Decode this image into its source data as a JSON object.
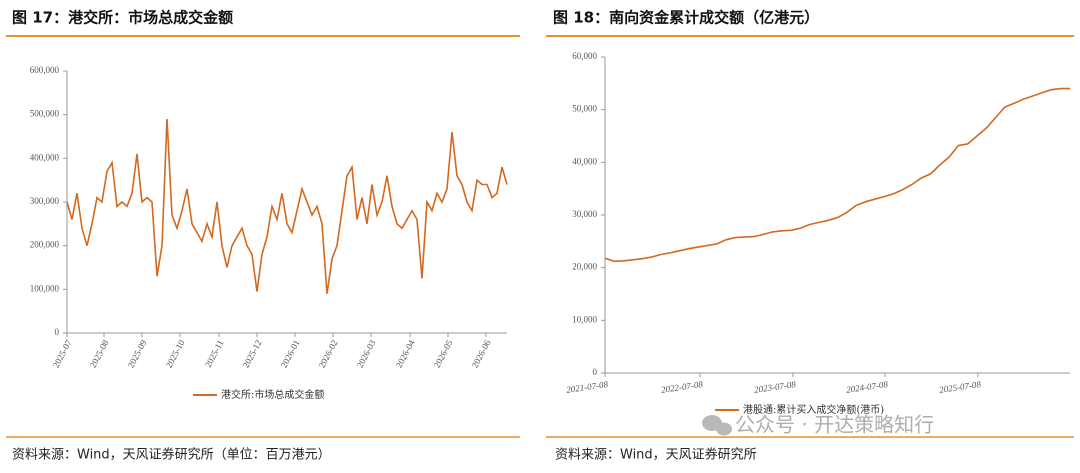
{
  "chart_data": [
    {
      "type": "line",
      "title": "图 17：港交所：市场总成交金额",
      "series": [
        {
          "name": "港交所:市场总成交金额",
          "color": "#d2691e",
          "values": [
            300000,
            260000,
            320000,
            240000,
            200000,
            250000,
            310000,
            300000,
            370000,
            390000,
            290000,
            300000,
            290000,
            320000,
            410000,
            300000,
            310000,
            300000,
            130000,
            200000,
            490000,
            270000,
            240000,
            280000,
            330000,
            250000,
            230000,
            210000,
            250000,
            220000,
            300000,
            200000,
            150000,
            200000,
            220000,
            240000,
            200000,
            180000,
            95000,
            180000,
            220000,
            290000,
            260000,
            320000,
            250000,
            230000,
            280000,
            330000,
            300000,
            270000,
            290000,
            250000,
            90000,
            170000,
            200000,
            280000,
            360000,
            380000,
            260000,
            310000,
            250000,
            340000,
            270000,
            300000,
            360000,
            290000,
            250000,
            240000,
            260000,
            280000,
            260000,
            125000,
            300000,
            280000,
            320000,
            300000,
            330000,
            460000,
            360000,
            340000,
            300000,
            280000,
            350000,
            340000,
            340000,
            310000,
            320000,
            380000,
            340000
          ]
        }
      ],
      "xlim": [
        0,
        88
      ],
      "xticks": [
        {
          "value": 0,
          "label": "2025-07"
        },
        {
          "value": 7.4,
          "label": "2025-08"
        },
        {
          "value": 15,
          "label": "2025-09"
        },
        {
          "value": 22.6,
          "label": "2025-10"
        },
        {
          "value": 30.4,
          "label": "2025-11"
        },
        {
          "value": 38,
          "label": "2025-12"
        },
        {
          "value": 45.6,
          "label": "2026-01"
        },
        {
          "value": 53.2,
          "label": "2026-02"
        },
        {
          "value": 60.8,
          "label": "2026-03"
        },
        {
          "value": 68.6,
          "label": "2026-04"
        },
        {
          "value": 76.2,
          "label": "2026-05"
        },
        {
          "value": 83.8,
          "label": "2026-06"
        }
      ],
      "ylim": [
        0,
        600000
      ],
      "yticks": [
        0,
        {
          "value": 100000,
          "label": "100,000"
        },
        {
          "value": 200000,
          "label": "200,000"
        },
        {
          "value": 300000,
          "label": "300,000"
        },
        {
          "value": 400000,
          "label": "400,000"
        },
        {
          "value": 500000,
          "label": "500,000"
        },
        {
          "value": 600000,
          "label": "600,000"
        }
      ]
    },
    {
      "type": "line",
      "title": "图 18：南向资金累计成交额（亿港元）",
      "series": [
        {
          "name": "港股通:累计买入成交净额(港币)",
          "color": "#d2691e",
          "values": [
            21800,
            21200,
            21300,
            21500,
            21700,
            22000,
            22500,
            22800,
            23200,
            23600,
            23900,
            24200,
            24500,
            25300,
            25700,
            25800,
            25900,
            26300,
            26800,
            27000,
            27100,
            27500,
            28200,
            28600,
            29000,
            29500,
            30500,
            31800,
            32500,
            33000,
            33500,
            34000,
            34800,
            35800,
            37000,
            37800,
            39500,
            41000,
            43200,
            43500,
            45000,
            46500,
            48500,
            50500,
            51200,
            52000,
            52600,
            53200,
            53800,
            54000,
            54000
          ]
        }
      ],
      "xlim": [
        0,
        50
      ],
      "xticks": [
        {
          "value": 0,
          "label": "2021-07-08"
        },
        {
          "value": 10.2,
          "label": "2022-07-08"
        },
        {
          "value": 20.2,
          "label": "2023-07-08"
        },
        {
          "value": 30.1,
          "label": "2024-07-08"
        },
        {
          "value": 40.1,
          "label": "2025-07-08"
        }
      ],
      "ylim": [
        0,
        60000
      ],
      "yticks": [
        0,
        {
          "value": 10000,
          "label": "10,000"
        },
        {
          "value": 20000,
          "label": "20,000"
        },
        {
          "value": 30000,
          "label": "30,000"
        },
        {
          "value": 40000,
          "label": "40,000"
        },
        {
          "value": 50000,
          "label": "50,000"
        },
        {
          "value": 60000,
          "label": "60,000"
        }
      ]
    }
  ],
  "sources": [
    "资料来源：Wind，天风证券研究所（单位：百万港元）",
    "资料来源：Wind，天风证券研究所"
  ],
  "watermark": "公众号 · 开达策略知行"
}
